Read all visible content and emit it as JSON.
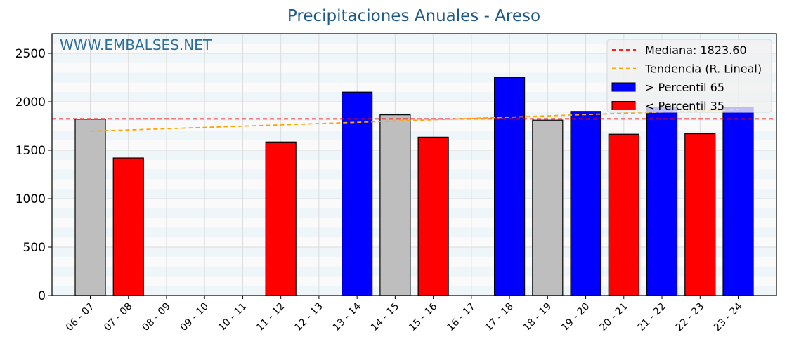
{
  "chart_data": {
    "type": "bar",
    "title": "Precipitaciones Anuales - Areso",
    "watermark": "WWW.EMBALSES.NET",
    "xlabel": "",
    "ylabel": "",
    "ylim": [
      0,
      2700
    ],
    "yticks": [
      0,
      500,
      1000,
      1500,
      2000,
      2500
    ],
    "categories": [
      "06 - 07",
      "07 - 08",
      "08 - 09",
      "09 - 10",
      "10 - 11",
      "11 - 12",
      "12 - 13",
      "13 - 14",
      "14 - 15",
      "15 - 16",
      "16 - 17",
      "17 - 18",
      "18 - 19",
      "19 - 20",
      "20 - 21",
      "21 - 22",
      "22 - 23",
      "23 - 24"
    ],
    "values": [
      1820,
      1420,
      null,
      null,
      null,
      1585,
      null,
      2100,
      1865,
      1635,
      null,
      2250,
      1810,
      1900,
      1665,
      1945,
      1670,
      1940
    ],
    "bar_classes": [
      "mid",
      "low",
      null,
      null,
      null,
      "low",
      null,
      "high",
      "mid",
      "low",
      null,
      "high",
      "mid",
      "high",
      "low",
      "high",
      "low",
      "high"
    ],
    "median": 1823.6,
    "trend": {
      "start": 1696,
      "end": 1920
    },
    "colors": {
      "high": "#0000ff",
      "low": "#ff0000",
      "mid": "#bebebe",
      "median": "#ff0000",
      "trend": "#ffa500",
      "title": "#1f5a85",
      "watermark": "#2f6e96",
      "stripe": "#eef6f9",
      "bg": "#fafafa"
    },
    "legend": [
      {
        "label": "Mediana: 1823.60",
        "type": "dashed",
        "color": "#ff0000"
      },
      {
        "label": "Tendencia (R. Lineal)",
        "type": "dashed",
        "color": "#ffa500"
      },
      {
        "label": " > Percentil 65",
        "type": "patch",
        "color": "#0000ff"
      },
      {
        "label": " < Percentil 35",
        "type": "patch",
        "color": "#ff0000"
      }
    ],
    "grid": true,
    "legend_position": "upper right"
  }
}
